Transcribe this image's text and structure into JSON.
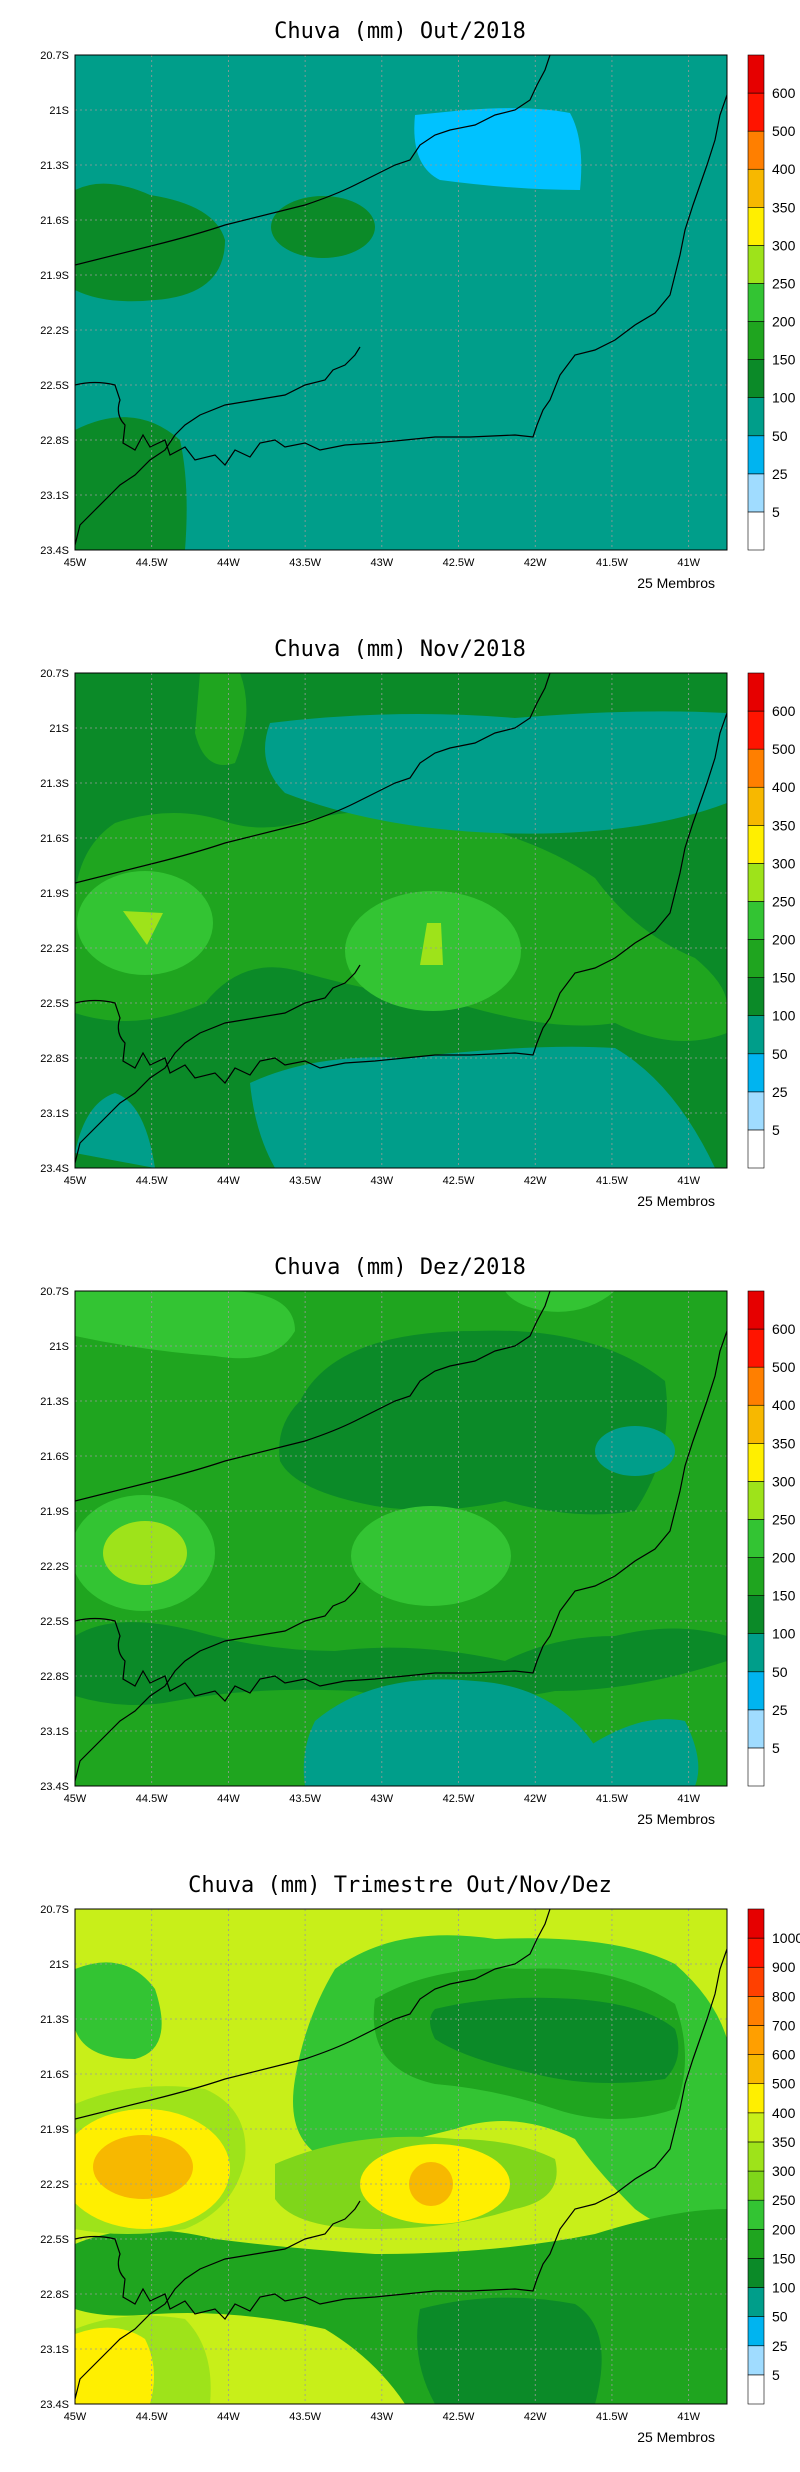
{
  "panels": [
    {
      "title": "Chuva (mm) Out/2018",
      "members": "25 Membros",
      "colorbar_labels": [
        "5",
        "25",
        "50",
        "100",
        "150",
        "200",
        "250",
        "300",
        "350",
        "400",
        "500",
        "600"
      ],
      "regions": [
        {
          "color": "#009e8a"
        },
        {
          "color": "#00c2ff"
        },
        {
          "color": "#0b8a28"
        },
        {
          "color": "#0b8a28"
        },
        {
          "color": "#0b8a28"
        }
      ]
    },
    {
      "title": "Chuva (mm) Nov/2018",
      "members": "25 Membros",
      "colorbar_labels": [
        "5",
        "25",
        "50",
        "100",
        "150",
        "200",
        "250",
        "300",
        "350",
        "400",
        "500",
        "600"
      ],
      "regions": [
        {
          "color": "#0b8a28"
        },
        {
          "color": "#1fa51f"
        },
        {
          "color": "#009e8a"
        },
        {
          "color": "#009e8a"
        },
        {
          "color": "#33c433"
        },
        {
          "color": "#33c433"
        },
        {
          "color": "#9ee31a"
        },
        {
          "color": "#9ee31a"
        }
      ]
    },
    {
      "title": "Chuva (mm) Dez/2018",
      "members": "25 Membros",
      "colorbar_labels": [
        "5",
        "25",
        "50",
        "100",
        "150",
        "200",
        "250",
        "300",
        "350",
        "400",
        "500",
        "600"
      ],
      "regions": [
        {
          "color": "#1fa51f"
        },
        {
          "color": "#33c433"
        },
        {
          "color": "#0b8a28"
        },
        {
          "color": "#0b8a28"
        },
        {
          "color": "#009e8a"
        },
        {
          "color": "#009e8a"
        },
        {
          "color": "#33c433"
        },
        {
          "color": "#33c433"
        },
        {
          "color": "#9ee31a"
        }
      ]
    },
    {
      "title": "Chuva (mm) Trimestre Out/Nov/Dez",
      "members": "25 Membros",
      "colorbar_labels": [
        "5",
        "25",
        "50",
        "100",
        "150",
        "200",
        "250",
        "300",
        "350",
        "400",
        "500",
        "600",
        "700",
        "800",
        "900",
        "1000"
      ],
      "regions": [
        {
          "color": "#c8ef19"
        },
        {
          "color": "#33c433"
        },
        {
          "color": "#1fa51f"
        },
        {
          "color": "#0b8a28"
        },
        {
          "color": "#7fd61a"
        },
        {
          "color": "#9ee31a"
        },
        {
          "color": "#ffef00"
        },
        {
          "color": "#ffef00"
        },
        {
          "color": "#f7b800"
        },
        {
          "color": "#f7b800"
        },
        {
          "color": "#ffef00"
        }
      ]
    }
  ],
  "lat_ticks": [
    "20.7S",
    "21S",
    "21.3S",
    "21.6S",
    "21.9S",
    "22.2S",
    "22.5S",
    "22.8S",
    "23.1S",
    "23.4S"
  ],
  "lon_ticks": [
    "45W",
    "44.5W",
    "44W",
    "43.5W",
    "43W",
    "42.5W",
    "42W",
    "41.5W",
    "41W"
  ],
  "colorbar_colors_12": [
    "#ffffff",
    "#a0dcff",
    "#00b4f0",
    "#009e8a",
    "#0b8a28",
    "#1fa51f",
    "#33c433",
    "#9ee31a",
    "#ffef00",
    "#f7b800",
    "#ff7f00",
    "#ff1400",
    "#e60000"
  ],
  "colorbar_colors_16": [
    "#ffffff",
    "#a0dcff",
    "#00b4f0",
    "#009e8a",
    "#0b8a28",
    "#1fa51f",
    "#33c433",
    "#7fd61a",
    "#9ee31a",
    "#c8ef19",
    "#ffef00",
    "#f7b800",
    "#ff9f00",
    "#ff7f00",
    "#ff4000",
    "#ff1400",
    "#e60000"
  ]
}
